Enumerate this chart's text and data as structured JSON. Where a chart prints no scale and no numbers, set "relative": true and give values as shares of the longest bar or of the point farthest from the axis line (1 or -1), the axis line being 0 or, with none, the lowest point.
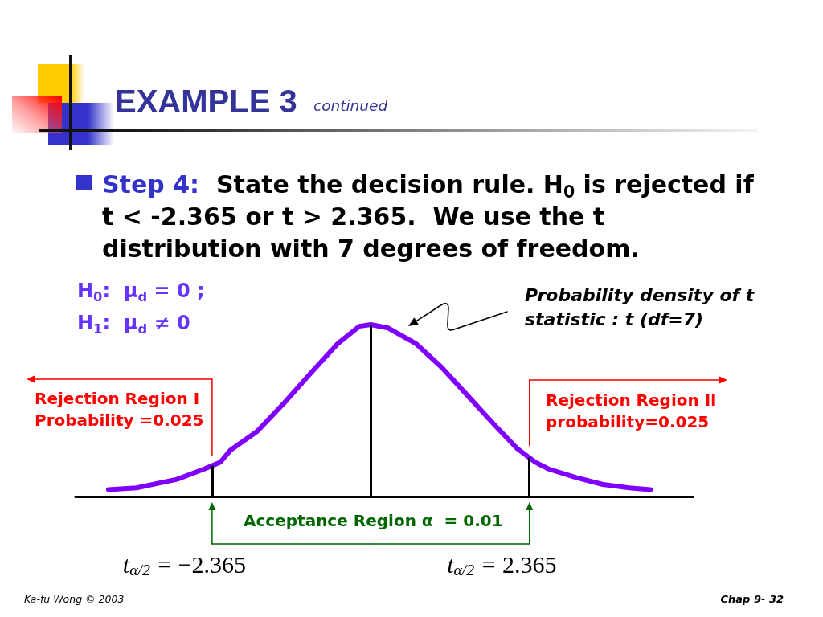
{
  "chart_data": {
    "type": "line",
    "title": "EXAMPLE 3",
    "subtitle": "continued",
    "x": [
      -3.91,
      -3.49,
      -2.89,
      -2.48,
      -2.24,
      -2.09,
      -1.69,
      -1.3,
      -0.89,
      -0.49,
      -0.17,
      0,
      0.26,
      0.67,
      1.06,
      1.46,
      1.86,
      2.18,
      2.45,
      2.65,
      3.06,
      3.46,
      3.85,
      4.17
    ],
    "values": [
      0.04,
      0.05,
      0.1,
      0.16,
      0.2,
      0.27,
      0.38,
      0.54,
      0.72,
      0.89,
      0.99,
      1,
      0.98,
      0.89,
      0.75,
      0.58,
      0.41,
      0.28,
      0.2,
      0.16,
      0.11,
      0.07,
      0.05,
      0.04
    ],
    "color": "#8000ff",
    "relative": true,
    "xlim": [
      -4.4,
      4.8
    ],
    "xticks": [
      {
        "value": -2.365,
        "label": "−2.365"
      },
      2.365
    ],
    "tick_labels": "x",
    "grid": false,
    "marker": "none",
    "line_style": "solid",
    "ref_lines": [
      {
        "axis": "x",
        "value": -2.365,
        "label": "t$_{α/2}$ =",
        "color": "#000000"
      },
      {
        "axis": "x",
        "value": 0,
        "color": "#000000"
      },
      {
        "axis": "x",
        "value": 2.365,
        "label": "t$_{α/2}$ =",
        "color": "#000000"
      }
    ],
    "annotations": [
      "Step 4:  State the decision rule. H$_{0}$ is rejected if\nt < -2.365 or t > 2.365.  We use the t\ndistribution with 7 degrees of freedom.",
      "H$_{0}$:  μ$_{d}$ = 0 ;",
      "H$_{1}$:  μ$_{d}$ ≠ 0",
      "Probability density of t\nstatistic : t (df=7)",
      "Rejection Region I\nProbability =0.025",
      "Rejection Region II\nprobability=0.025",
      "Acceptance Region α  = 0.01",
      "Ka-fu Wong © 2003",
      "Chap 9- 32"
    ]
  }
}
